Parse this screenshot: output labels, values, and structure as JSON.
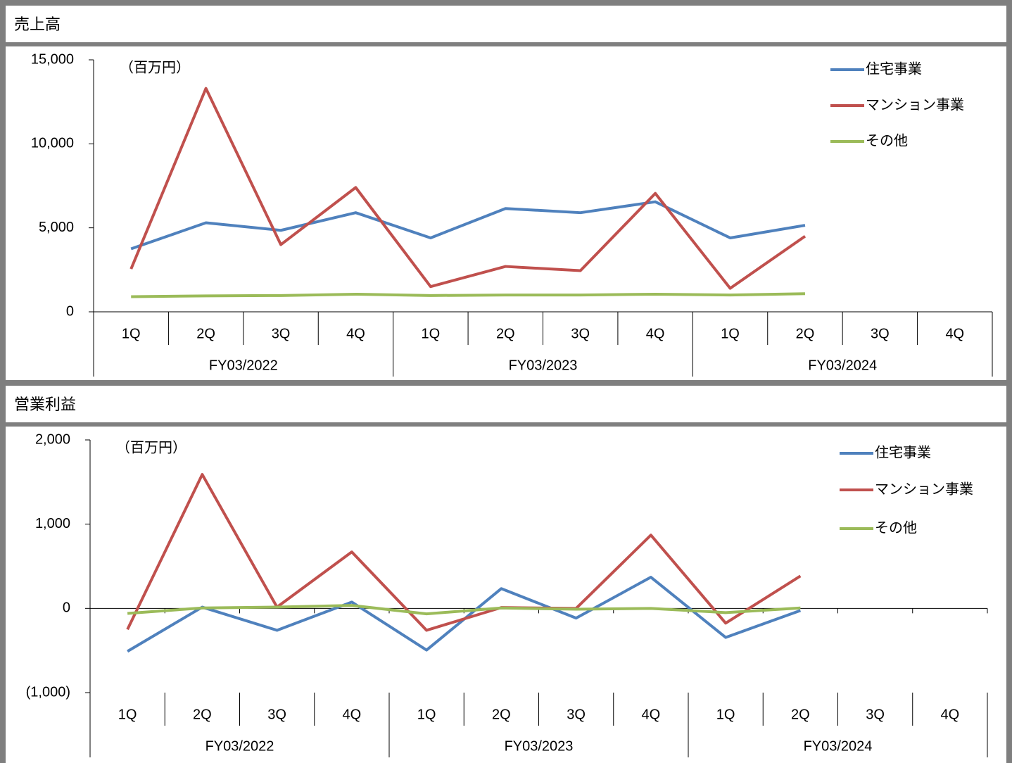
{
  "chart_data": [
    {
      "type": "line",
      "title": "売上高",
      "unit": "（百万円）",
      "categories": [
        "1Q",
        "2Q",
        "3Q",
        "4Q",
        "1Q",
        "2Q",
        "3Q",
        "4Q",
        "1Q",
        "2Q",
        "3Q",
        "4Q"
      ],
      "groups": [
        "FY03/2022",
        "FY03/2023",
        "FY03/2024"
      ],
      "series": [
        {
          "name": "住宅事業",
          "color": "#4f81bd",
          "values": [
            3750,
            5300,
            4850,
            5900,
            4400,
            6150,
            5900,
            6550,
            4400,
            5150,
            null,
            null
          ]
        },
        {
          "name": "マンション事業",
          "color": "#c0504d",
          "values": [
            2550,
            13300,
            4000,
            7400,
            1500,
            2700,
            2450,
            7050,
            1400,
            4500,
            null,
            null
          ]
        },
        {
          "name": "その他",
          "color": "#9bbb59",
          "values": [
            900,
            950,
            970,
            1050,
            970,
            1000,
            1000,
            1050,
            1000,
            1080,
            null,
            null
          ]
        }
      ],
      "ylim": [
        0,
        15000
      ],
      "yticks": [
        0,
        {
          "value": 5000,
          "label": "5,000"
        },
        {
          "value": 10000,
          "label": "10,000"
        },
        {
          "value": 15000,
          "label": "15,000"
        }
      ]
    },
    {
      "type": "line",
      "title": "営業利益",
      "unit": "（百万円）",
      "categories": [
        "1Q",
        "2Q",
        "3Q",
        "4Q",
        "1Q",
        "2Q",
        "3Q",
        "4Q",
        "1Q",
        "2Q",
        "3Q",
        "4Q"
      ],
      "groups": [
        "FY03/2022",
        "FY03/2023",
        "FY03/2024"
      ],
      "series": [
        {
          "name": "住宅事業",
          "color": "#4f81bd",
          "values": [
            -510,
            15,
            -260,
            75,
            -495,
            235,
            -115,
            370,
            -345,
            -25,
            null,
            null
          ]
        },
        {
          "name": "マンション事業",
          "color": "#c0504d",
          "values": [
            -250,
            1590,
            15,
            670,
            -260,
            10,
            0,
            870,
            -175,
            385,
            null,
            null
          ]
        },
        {
          "name": "その他",
          "color": "#9bbb59",
          "values": [
            -60,
            5,
            15,
            35,
            -65,
            5,
            -10,
            0,
            -50,
            5,
            null,
            null
          ]
        }
      ],
      "ylim": [
        -1000,
        2000
      ],
      "yticks": [
        {
          "value": -1000,
          "label": "(1,000)"
        },
        0,
        {
          "value": 1000,
          "label": "1,000"
        },
        {
          "value": 2000,
          "label": "2,000"
        }
      ]
    }
  ]
}
